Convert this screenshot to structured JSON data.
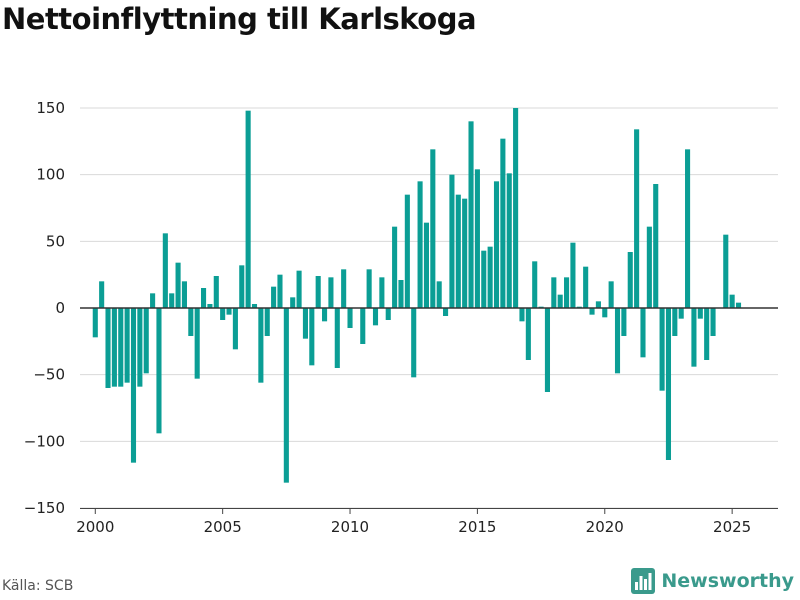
{
  "title": "Nettoinflyttning till Karlskoga",
  "source": "Källa: SCB",
  "brand": {
    "name": "Newsworthy",
    "icon": "bar-chart-logo-icon",
    "color": "#3a9a8c"
  },
  "colors": {
    "bar": "#0b9e95",
    "grid": "#d9d9d9",
    "zero": "#333333"
  },
  "chart_data": {
    "type": "bar",
    "title": "Nettoinflyttning till Karlskoga",
    "xlabel": "",
    "ylabel": "",
    "xlim": [
      1999.4,
      2026.8
    ],
    "ylim": [
      -150,
      150
    ],
    "xticks": [
      2000,
      2005,
      2010,
      2015,
      2020,
      2025
    ],
    "yticks": [
      150,
      100,
      50,
      0,
      -50,
      -100,
      -150
    ],
    "ytick_labels": [
      "150",
      "100",
      "50",
      "0",
      "−50",
      "−100",
      "−150"
    ],
    "grid": true,
    "legend": "none",
    "series": [
      {
        "x": [
          2000.0,
          2000.25,
          2000.5,
          2000.75,
          2001.0,
          2001.25,
          2001.5,
          2001.75,
          2002.0,
          2002.25,
          2002.5,
          2002.75,
          2003.0,
          2003.25,
          2003.5,
          2003.75,
          2004.0,
          2004.25,
          2004.5,
          2004.75,
          2005.0,
          2005.25,
          2005.5,
          2005.75,
          2006.0,
          2006.25,
          2006.5,
          2006.75,
          2007.0,
          2007.25,
          2007.5,
          2007.75,
          2008.0,
          2008.25,
          2008.5,
          2008.75,
          2009.0,
          2009.25,
          2009.5,
          2009.75,
          2010.0,
          2010.25,
          2010.5,
          2010.75,
          2011.0,
          2011.25,
          2011.5,
          2011.75,
          2012.0,
          2012.25,
          2012.5,
          2012.75,
          2013.0,
          2013.25,
          2013.5,
          2013.75,
          2014.0,
          2014.25,
          2014.5,
          2014.75,
          2015.0,
          2015.25,
          2015.5,
          2015.75,
          2016.0,
          2016.25,
          2016.5,
          2016.75,
          2017.0,
          2017.25,
          2017.5,
          2017.75,
          2018.0,
          2018.25,
          2018.5,
          2018.75,
          2019.0,
          2019.25,
          2019.5,
          2019.75,
          2020.0,
          2020.25,
          2020.5,
          2020.75,
          2021.0,
          2021.25,
          2021.5,
          2021.75,
          2022.0,
          2022.25,
          2022.5,
          2022.75,
          2023.0,
          2023.25,
          2023.5,
          2023.75,
          2024.0,
          2024.25,
          2024.5,
          2024.75,
          2025.0,
          2025.25
        ],
        "values": [
          -22,
          20,
          -60,
          -59,
          -59,
          -56,
          -116,
          -59,
          -49,
          11,
          -94,
          56,
          11,
          34,
          20,
          -21,
          -53,
          15,
          3,
          24,
          -9,
          -5,
          -31,
          32,
          148,
          3,
          -56,
          -21,
          16,
          25,
          -131,
          8,
          28,
          -23,
          -43,
          24,
          -10,
          23,
          -45,
          29,
          -15,
          0,
          -27,
          29,
          -13,
          23,
          -9,
          61,
          21,
          85,
          -52,
          95,
          64,
          119,
          20,
          -6,
          100,
          85,
          82,
          140,
          104,
          43,
          46,
          95,
          127,
          101,
          150,
          -10,
          -39,
          35,
          1,
          -63,
          23,
          10,
          23,
          49,
          1,
          31,
          -5,
          5,
          -7,
          20,
          -49,
          -21,
          42,
          134,
          -37,
          61,
          93,
          -62,
          -114,
          -21,
          -8,
          119,
          -44,
          -8,
          -39,
          -21,
          0,
          55,
          10,
          4
        ]
      }
    ]
  }
}
